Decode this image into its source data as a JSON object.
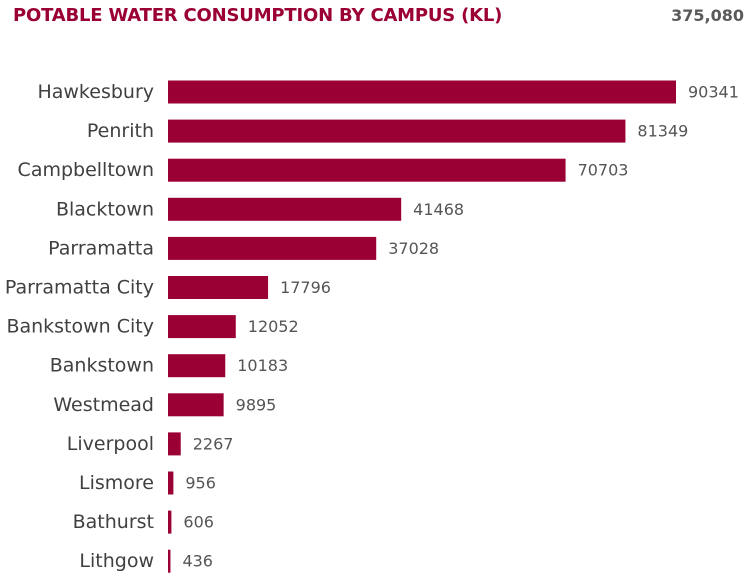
{
  "header": {
    "title": "POTABLE WATER CONSUMPTION BY CAMPUS (KL)",
    "total": "375,080"
  },
  "colors": {
    "bar": "#9b0034",
    "title": "#9b0034",
    "total": "#5a5a5a"
  },
  "chart_data": {
    "type": "bar",
    "orientation": "horizontal",
    "title": "POTABLE WATER CONSUMPTION BY CAMPUS (KL)",
    "xlabel": "",
    "ylabel": "",
    "grid": false,
    "data_labels": true,
    "xlim": [
      0,
      90341
    ],
    "categories": [
      "Hawkesbury",
      "Penrith",
      "Campbelltown",
      "Blacktown",
      "Parramatta",
      "Parramatta City",
      "Bankstown City",
      "Bankstown",
      "Westmead",
      "Liverpool",
      "Lismore",
      "Bathurst",
      "Lithgow"
    ],
    "values": [
      90341,
      81349,
      70703,
      41468,
      37028,
      17796,
      12052,
      10183,
      9895,
      2267,
      956,
      606,
      436
    ]
  }
}
